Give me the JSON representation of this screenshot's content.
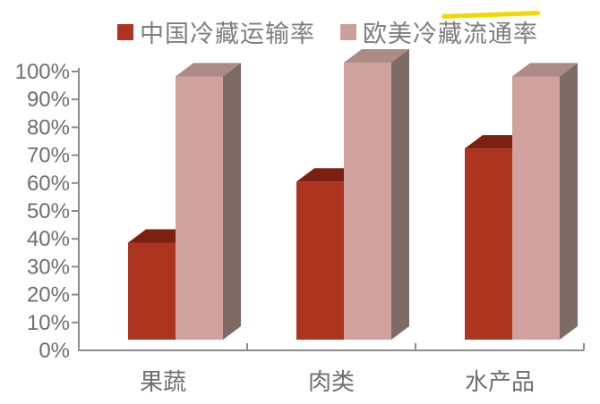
{
  "legend": [
    {
      "label": "中国冷藏运输率",
      "color": "#AD341E"
    },
    {
      "label": "欧美冷藏流通率",
      "color": "#CBA09A",
      "highlighted_part": "流通率"
    }
  ],
  "chart_data": {
    "type": "bar",
    "style": "3d-column",
    "title": "",
    "xlabel": "",
    "ylabel": "",
    "categories": [
      "果蔬",
      "肉类",
      "水产品"
    ],
    "series": [
      {
        "name": "中国冷藏运输率",
        "values": [
          35,
          57,
          69
        ],
        "front_color": "#AD341E",
        "top_color": "#7C2012"
      },
      {
        "name": "欧美冷藏流通率",
        "values": [
          95,
          100,
          95
        ],
        "front_color": "#CFA29D",
        "top_color": "#AC8B85",
        "side_color": "#7F6B66"
      }
    ],
    "y_ticks": [
      "0%",
      "10%",
      "20%",
      "30%",
      "40%",
      "50%",
      "60%",
      "70%",
      "80%",
      "90%",
      "100%"
    ],
    "ylim": [
      0,
      100
    ],
    "grid": false,
    "legend_position": "top"
  },
  "colors": {
    "axis": "#8C8C8C",
    "tick_text": "#6E6E6E",
    "category_text": "#6E6E6E",
    "highlight": "#F0D800",
    "background": "#FFFFFF"
  }
}
